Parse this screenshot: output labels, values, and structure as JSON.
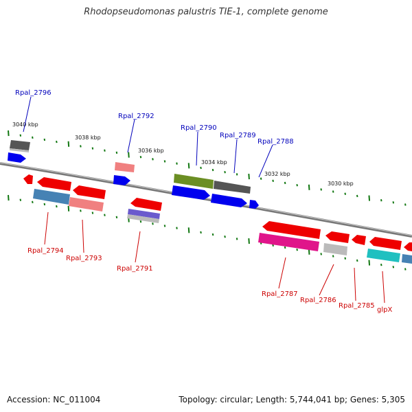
{
  "title": "Rhodopseudomonas palustris TIE-1, complete genome",
  "footer": {
    "accession": "Accession: NC_011004",
    "summary": "Topology: circular; Length: 5,744,041 bp; Genes: 5,305"
  },
  "scale_labels": [
    "3040 kbp",
    "3038 kbp",
    "3036 kbp",
    "3034 kbp",
    "3032 kbp",
    "3030 kbp"
  ],
  "gene_labels": {
    "top": [
      "Rpal_2796",
      "Rpal_2792",
      "Rpal_2790",
      "Rpal_2789",
      "Rpal_2788"
    ],
    "bottom": [
      "Rpal_2794",
      "Rpal_2793",
      "Rpal_2791",
      "Rpal_2787",
      "Rpal_2786",
      "Rpal_2785",
      "glpX"
    ]
  },
  "colors": {
    "top_label": "#0000bb",
    "bottom_label": "#cc0000",
    "scale_tick": "#117711",
    "backbone": "#888888"
  }
}
